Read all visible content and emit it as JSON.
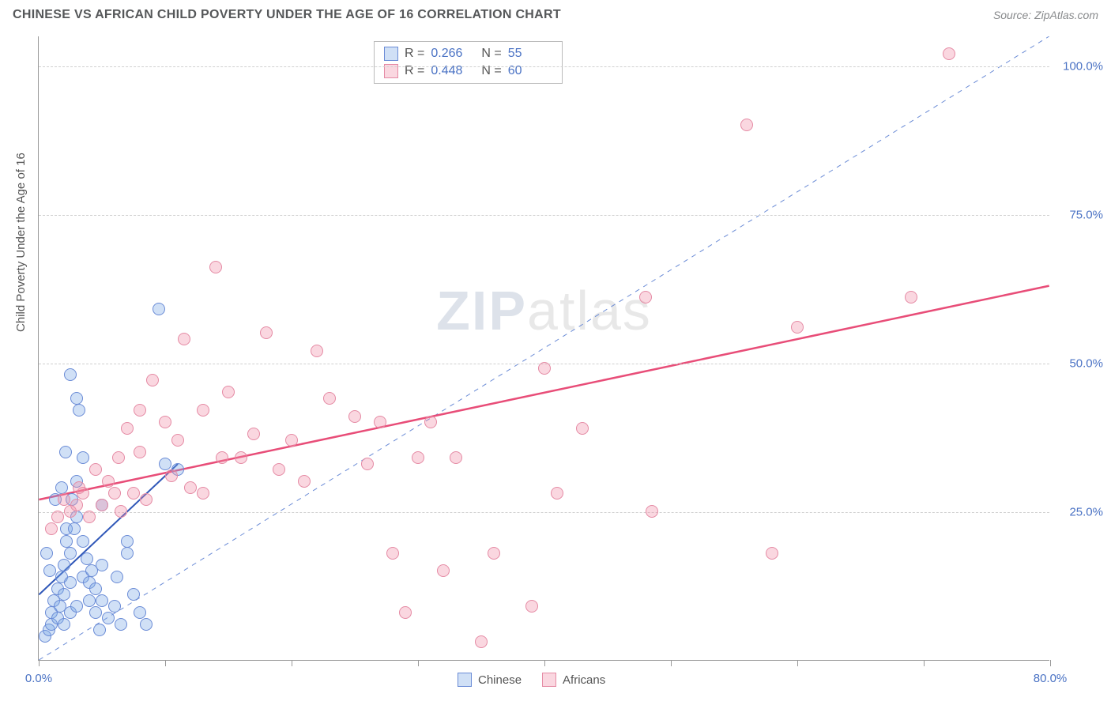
{
  "title": "CHINESE VS AFRICAN CHILD POVERTY UNDER THE AGE OF 16 CORRELATION CHART",
  "source_label": "Source:",
  "source_name": "ZipAtlas.com",
  "y_axis_label": "Child Poverty Under the Age of 16",
  "watermark": {
    "zip": "ZIP",
    "atlas": "atlas"
  },
  "chart": {
    "type": "scatter",
    "background_color": "#ffffff",
    "grid_color": "#d0d0d0",
    "axis_color": "#999999",
    "xlim": [
      0,
      80
    ],
    "ylim": [
      0,
      105
    ],
    "x_ticks": [
      0,
      10,
      20,
      30,
      40,
      50,
      60,
      70,
      80
    ],
    "x_tick_labels": {
      "0": "0.0%",
      "80": "80.0%"
    },
    "y_ticks": [
      25,
      50,
      75,
      100
    ],
    "y_tick_labels": {
      "25": "25.0%",
      "50": "50.0%",
      "75": "75.0%",
      "100": "100.0%"
    },
    "marker_radius": 8,
    "identity_line": {
      "color": "#6a8bd6",
      "dash": "6 6",
      "width": 1,
      "from": [
        0,
        0
      ],
      "to": [
        80,
        105
      ]
    },
    "series": [
      {
        "name": "Chinese",
        "fill": "rgba(120,165,230,0.35)",
        "stroke": "#6a8bd6",
        "trend": {
          "from": [
            0,
            11
          ],
          "to": [
            11,
            33
          ],
          "color": "#2f57b8",
          "width": 2
        },
        "R_label": "R =",
        "R": "0.266",
        "N_label": "N =",
        "N": "55",
        "points": [
          [
            0.5,
            4
          ],
          [
            0.8,
            5
          ],
          [
            1,
            6
          ],
          [
            1,
            8
          ],
          [
            1.2,
            10
          ],
          [
            1.5,
            7
          ],
          [
            1.5,
            12
          ],
          [
            1.7,
            9
          ],
          [
            1.8,
            14
          ],
          [
            2,
            6
          ],
          [
            2,
            11
          ],
          [
            2,
            16
          ],
          [
            2.2,
            20
          ],
          [
            2.2,
            22
          ],
          [
            2.5,
            8
          ],
          [
            2.5,
            13
          ],
          [
            2.5,
            18
          ],
          [
            2.8,
            22
          ],
          [
            3,
            9
          ],
          [
            3,
            24
          ],
          [
            3,
            44
          ],
          [
            3.2,
            42
          ],
          [
            3.5,
            14
          ],
          [
            3.5,
            20
          ],
          [
            4,
            10
          ],
          [
            4,
            13
          ],
          [
            4.5,
            8
          ],
          [
            4.5,
            12
          ],
          [
            4.8,
            5
          ],
          [
            5,
            10
          ],
          [
            5,
            16
          ],
          [
            5.5,
            7
          ],
          [
            6,
            9
          ],
          [
            6.5,
            6
          ],
          [
            2.5,
            48
          ],
          [
            3,
            30
          ],
          [
            3.5,
            34
          ],
          [
            7,
            18
          ],
          [
            7,
            20
          ],
          [
            7.5,
            11
          ],
          [
            8,
            8
          ],
          [
            8.5,
            6
          ],
          [
            9.5,
            59
          ],
          [
            10,
            33
          ],
          [
            11,
            32
          ],
          [
            5,
            26
          ],
          [
            1.3,
            27
          ],
          [
            1.8,
            29
          ],
          [
            2.1,
            35
          ],
          [
            2.6,
            27
          ],
          [
            0.6,
            18
          ],
          [
            0.9,
            15
          ],
          [
            3.8,
            17
          ],
          [
            4.2,
            15
          ],
          [
            6.2,
            14
          ]
        ]
      },
      {
        "name": "Africans",
        "fill": "rgba(240,140,165,0.35)",
        "stroke": "#e58aa4",
        "trend": {
          "from": [
            0,
            27
          ],
          "to": [
            80,
            63
          ],
          "color": "#e84d78",
          "width": 2.5
        },
        "R_label": "R =",
        "R": "0.448",
        "N_label": "N =",
        "N": "60",
        "points": [
          [
            1,
            22
          ],
          [
            1.5,
            24
          ],
          [
            2,
            27
          ],
          [
            2.5,
            25
          ],
          [
            3,
            26
          ],
          [
            3.5,
            28
          ],
          [
            4,
            24
          ],
          [
            5,
            26
          ],
          [
            6,
            28
          ],
          [
            6.5,
            25
          ],
          [
            7,
            39
          ],
          [
            7.5,
            28
          ],
          [
            8,
            42
          ],
          [
            8.5,
            27
          ],
          [
            9,
            47
          ],
          [
            10,
            40
          ],
          [
            11,
            37
          ],
          [
            11.5,
            54
          ],
          [
            12,
            29
          ],
          [
            13,
            42
          ],
          [
            13,
            28
          ],
          [
            14,
            66
          ],
          [
            15,
            45
          ],
          [
            16,
            34
          ],
          [
            18,
            55
          ],
          [
            19,
            32
          ],
          [
            20,
            37
          ],
          [
            21,
            30
          ],
          [
            22,
            52
          ],
          [
            23,
            44
          ],
          [
            25,
            41
          ],
          [
            26,
            33
          ],
          [
            27,
            40
          ],
          [
            28,
            18
          ],
          [
            29,
            8
          ],
          [
            30,
            34
          ],
          [
            31,
            40
          ],
          [
            32,
            15
          ],
          [
            33,
            34
          ],
          [
            35,
            3
          ],
          [
            36,
            18
          ],
          [
            39,
            9
          ],
          [
            40,
            49
          ],
          [
            41,
            28
          ],
          [
            43,
            39
          ],
          [
            48,
            61
          ],
          [
            48.5,
            25
          ],
          [
            56,
            90
          ],
          [
            58,
            18
          ],
          [
            60,
            56
          ],
          [
            69,
            61
          ],
          [
            72,
            102
          ],
          [
            8,
            35
          ],
          [
            10.5,
            31
          ],
          [
            14.5,
            34
          ],
          [
            17,
            38
          ],
          [
            5.5,
            30
          ],
          [
            4.5,
            32
          ],
          [
            6.3,
            34
          ],
          [
            3.2,
            29
          ]
        ]
      }
    ]
  },
  "bottom_legend": [
    {
      "label": "Chinese",
      "fill": "rgba(120,165,230,0.35)",
      "stroke": "#6a8bd6"
    },
    {
      "label": "Africans",
      "fill": "rgba(240,140,165,0.35)",
      "stroke": "#e58aa4"
    }
  ]
}
